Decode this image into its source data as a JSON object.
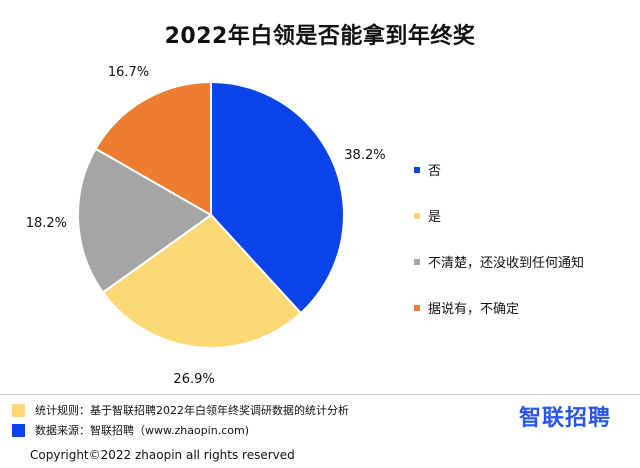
{
  "title": "2022年白领是否能拿到年终奖",
  "chart_data": {
    "type": "pie",
    "title": "2022年白领是否能拿到年终奖",
    "slices": [
      {
        "label": "否",
        "value": 38.2,
        "display": "38.2%",
        "color": "#0a44e8"
      },
      {
        "label": "是",
        "value": 26.9,
        "display": "26.9%",
        "color": "#fdd877"
      },
      {
        "label": "不清楚，还没收到任何通知",
        "value": 18.2,
        "display": "18.2%",
        "color": "#a5a5a5"
      },
      {
        "label": "据说有，不确定",
        "value": 16.7,
        "display": "16.7%",
        "color": "#ec7d31"
      }
    ],
    "legend_position": "right"
  },
  "footer": {
    "notes": [
      {
        "text": "统计规则：基于智联招聘2022年白领年终奖调研数据的统计分析",
        "color": "#fdd877"
      },
      {
        "text": "数据来源：智联招聘（www.zhaopin.com)",
        "color": "#0a44e8"
      }
    ],
    "logo_text": "智联招聘",
    "logo_color": "#2a56e8",
    "copyright": "Copyright©2022 zhaopin all rights reserved"
  }
}
